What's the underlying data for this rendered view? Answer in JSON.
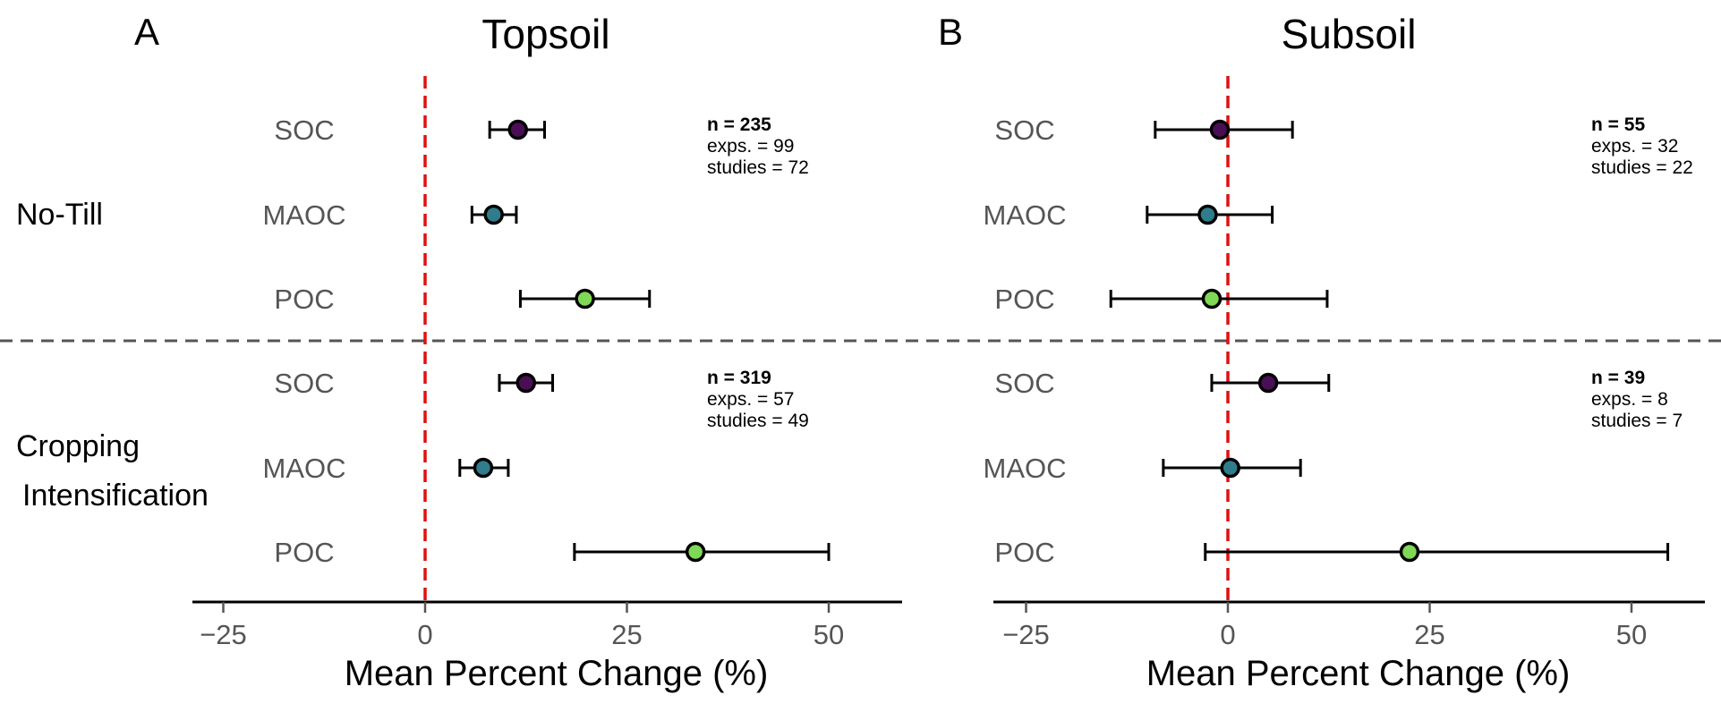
{
  "groups": [
    "No-Till",
    "Cropping Intensification"
  ],
  "group_label_lines": [
    [
      "No-Till"
    ],
    [
      "Cropping",
      "Intensification"
    ]
  ],
  "colors": {
    "SOC": "#4a0e54",
    "MAOC": "#2f7d8c",
    "POC": "#7ed957",
    "zero_line": "#e01010",
    "separator": "#555555",
    "errorbar": "#000000"
  },
  "chart_data": [
    {
      "type": "forest",
      "panel": "A",
      "title": "Topsoil",
      "xlabel": "Mean Percent Change (%)",
      "xlim": [
        -29,
        59
      ],
      "xticks": [
        -25,
        0,
        25,
        50
      ],
      "xtick_labels": [
        "−25",
        "0",
        "25",
        "50"
      ],
      "reference_line": 0,
      "groups": [
        {
          "name": "No-Till",
          "points": [
            {
              "label": "SOC",
              "mean": 11.5,
              "low": 8.0,
              "high": 14.8
            },
            {
              "label": "MAOC",
              "mean": 8.5,
              "low": 5.8,
              "high": 11.3
            },
            {
              "label": "POC",
              "mean": 19.8,
              "low": 11.8,
              "high": 27.8
            }
          ],
          "annotation": {
            "n": "n = 235",
            "exps": "exps. = 99",
            "studies": "studies = 72"
          }
        },
        {
          "name": "Cropping Intensification",
          "points": [
            {
              "label": "SOC",
              "mean": 12.5,
              "low": 9.2,
              "high": 15.8
            },
            {
              "label": "MAOC",
              "mean": 7.2,
              "low": 4.3,
              "high": 10.3
            },
            {
              "label": "POC",
              "mean": 33.5,
              "low": 18.5,
              "high": 50.0
            }
          ],
          "annotation": {
            "n": "n = 319",
            "exps": "exps. = 57",
            "studies": "studies = 49"
          }
        }
      ]
    },
    {
      "type": "forest",
      "panel": "B",
      "title": "Subsoil",
      "xlabel": "Mean Percent Change (%)",
      "xlim": [
        -29,
        59
      ],
      "xticks": [
        -25,
        0,
        25,
        50
      ],
      "xtick_labels": [
        "−25",
        "0",
        "25",
        "50"
      ],
      "reference_line": 0,
      "groups": [
        {
          "name": "No-Till",
          "points": [
            {
              "label": "SOC",
              "mean": -1.0,
              "low": -9.0,
              "high": 8.0
            },
            {
              "label": "MAOC",
              "mean": -2.5,
              "low": -10.0,
              "high": 5.5
            },
            {
              "label": "POC",
              "mean": -2.0,
              "low": -14.5,
              "high": 12.3
            }
          ],
          "annotation": {
            "n": "n = 55",
            "exps": "exps. = 32",
            "studies": "studies = 22"
          }
        },
        {
          "name": "Cropping Intensification",
          "points": [
            {
              "label": "SOC",
              "mean": 5.0,
              "low": -2.0,
              "high": 12.5
            },
            {
              "label": "MAOC",
              "mean": 0.3,
              "low": -8.0,
              "high": 9.0
            },
            {
              "label": "POC",
              "mean": 22.5,
              "low": -2.8,
              "high": 54.5
            }
          ],
          "annotation": {
            "n": "n = 39",
            "exps": "exps. = 8",
            "studies": "studies = 7"
          }
        }
      ]
    }
  ]
}
